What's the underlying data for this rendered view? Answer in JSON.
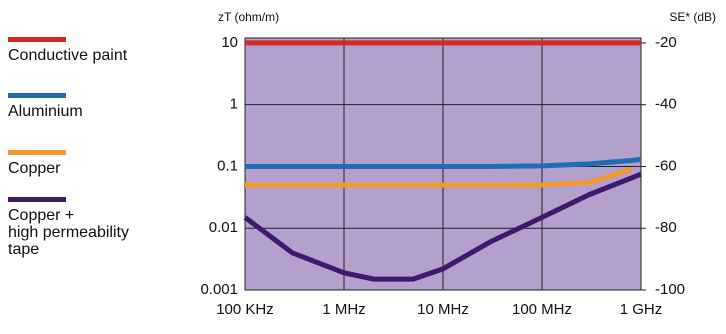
{
  "chart_data": {
    "type": "line",
    "y_label": "zT (ohm/m)",
    "y2_label": "SE* (dB)",
    "log_x": true,
    "log_y": true,
    "grid": true,
    "background": "#b3a0cc",
    "x": [
      100000,
      300000,
      1000000,
      2000000,
      5000000,
      10000000,
      30000000,
      100000000,
      300000000,
      800000000,
      1000000000
    ],
    "xlim": [
      100000,
      1000000000
    ],
    "xticks": [
      {
        "value": 100000,
        "label": "100 KHz"
      },
      {
        "value": 1000000,
        "label": "1 MHz"
      },
      {
        "value": 10000000,
        "label": "10 MHz"
      },
      {
        "value": 100000000,
        "label": "100 MHz"
      },
      {
        "value": 1000000000,
        "label": "1 GHz"
      }
    ],
    "ylim": [
      0.001,
      12
    ],
    "yticks": [
      10,
      1,
      0.1,
      0.01,
      0.001
    ],
    "y2lim": [
      -100,
      -18.4
    ],
    "y2ticks": [
      -20,
      -40,
      -60,
      -80,
      -100
    ],
    "series": [
      {
        "name": "Conductive paint",
        "color": "#d42a22",
        "values": [
          10,
          10,
          10,
          10,
          10,
          10,
          10,
          10,
          10,
          10,
          10
        ]
      },
      {
        "name": "Aluminium",
        "color": "#1f6db3",
        "values": [
          0.1,
          0.1,
          0.1,
          0.1,
          0.1,
          0.1,
          0.1,
          0.102,
          0.11,
          0.125,
          0.13
        ]
      },
      {
        "name": "Copper",
        "color": "#f29a2e",
        "values": [
          0.05,
          0.05,
          0.05,
          0.05,
          0.05,
          0.05,
          0.05,
          0.05,
          0.055,
          0.09,
          null
        ]
      },
      {
        "name": "Copper +\nhigh permeability\ntape",
        "color": "#3d1a6b",
        "values": [
          0.015,
          0.004,
          0.0019,
          0.0015,
          0.0015,
          0.0022,
          0.006,
          0.015,
          0.035,
          0.065,
          0.075
        ]
      }
    ]
  }
}
